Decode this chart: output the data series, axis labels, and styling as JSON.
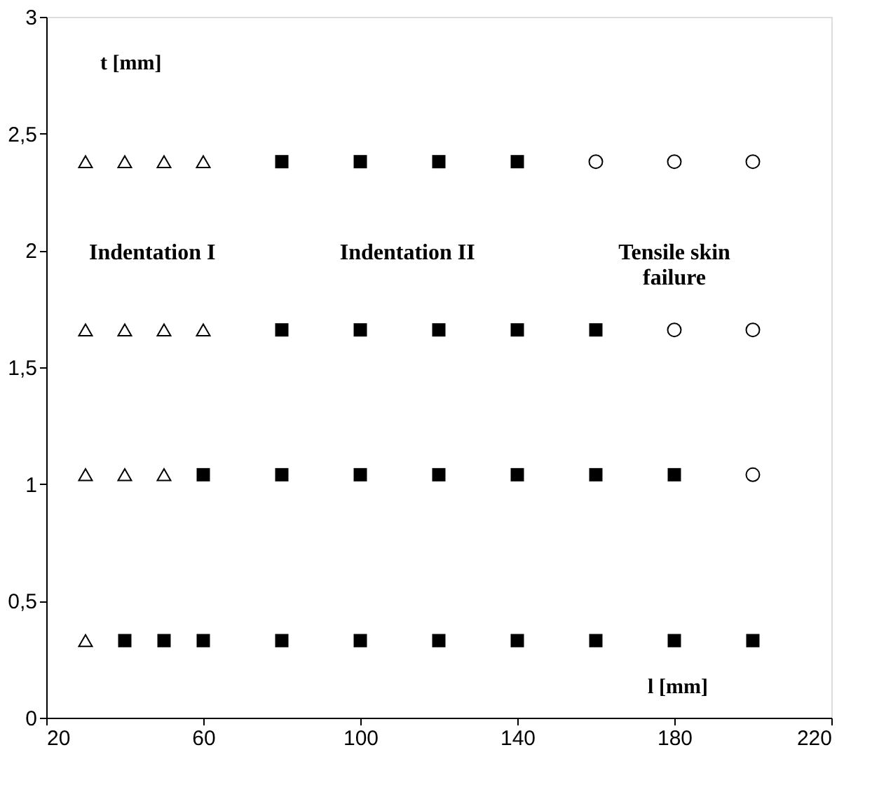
{
  "chart_data": {
    "type": "scatter",
    "xlabel": "l  [mm]",
    "ylabel": "t  [mm]",
    "xlim": [
      20,
      220
    ],
    "xticks": [
      20,
      60,
      100,
      140,
      180,
      220
    ],
    "ylim": [
      0,
      3
    ],
    "grid": false,
    "yticks": [
      0,
      {
        "value": 0.5,
        "label": "0,5"
      },
      1,
      {
        "value": 1.5,
        "label": "1,5"
      },
      2,
      {
        "value": 2.5,
        "label": "2,5"
      },
      3
    ],
    "series": [
      {
        "color": "#000000",
        "marker": "triangle",
        "x": [
          30,
          40,
          50,
          60,
          30,
          40,
          50,
          60,
          30,
          40,
          50,
          30
        ],
        "values": [
          2.38,
          2.38,
          2.38,
          2.38,
          1.66,
          1.66,
          1.66,
          1.66,
          1.04,
          1.04,
          1.04,
          0.33
        ]
      },
      {
        "color": "#000000",
        "marker": "square",
        "x": [
          80,
          100,
          120,
          140,
          80,
          100,
          120,
          140,
          160,
          60,
          80,
          100,
          120,
          140,
          160,
          180,
          40,
          50,
          60,
          80,
          100,
          120,
          140,
          160,
          180,
          200
        ],
        "values": [
          2.38,
          2.38,
          2.38,
          2.38,
          1.66,
          1.66,
          1.66,
          1.66,
          1.66,
          1.04,
          1.04,
          1.04,
          1.04,
          1.04,
          1.04,
          1.04,
          0.33,
          0.33,
          0.33,
          0.33,
          0.33,
          0.33,
          0.33,
          0.33,
          0.33,
          0.33
        ]
      },
      {
        "color": "#000000",
        "marker": "circle",
        "x": [
          160,
          180,
          200,
          180,
          200,
          200
        ],
        "values": [
          2.38,
          2.38,
          2.38,
          1.66,
          1.66,
          1.04
        ]
      }
    ],
    "annotations": [
      "Indentation I",
      "Indentation II",
      "Tensile skin\nfailure"
    ]
  }
}
